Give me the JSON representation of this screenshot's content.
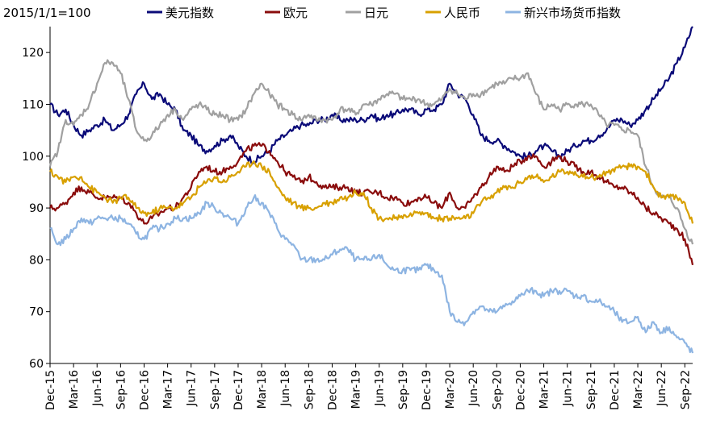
{
  "chart_data": {
    "type": "line",
    "note": "2015/1/1=100",
    "title": "",
    "xlabel": "",
    "ylabel": "",
    "ylim": [
      60,
      125
    ],
    "yticks": [
      60,
      70,
      80,
      90,
      100,
      110,
      120
    ],
    "xlim": [
      "2015-12",
      "2022-10"
    ],
    "xtick_labels": [
      "Dec-15",
      "Mar-16",
      "Jun-16",
      "Sep-16",
      "Dec-16",
      "Mar-17",
      "Jun-17",
      "Sep-17",
      "Dec-17",
      "Mar-18",
      "Jun-18",
      "Sep-18",
      "Dec-18",
      "Mar-19",
      "Jun-19",
      "Sep-19",
      "Dec-19",
      "Mar-20",
      "Jun-20",
      "Sep-20",
      "Dec-20",
      "Mar-21",
      "Jun-21",
      "Sep-21",
      "Dec-21",
      "Mar-22",
      "Jun-22",
      "Sep-22"
    ],
    "grid": false,
    "legend_position": "top",
    "x": [
      "2015-12",
      "2016-01",
      "2016-02",
      "2016-03",
      "2016-04",
      "2016-05",
      "2016-06",
      "2016-07",
      "2016-08",
      "2016-09",
      "2016-10",
      "2016-11",
      "2016-12",
      "2017-01",
      "2017-02",
      "2017-03",
      "2017-04",
      "2017-05",
      "2017-06",
      "2017-07",
      "2017-08",
      "2017-09",
      "2017-10",
      "2017-11",
      "2017-12",
      "2018-01",
      "2018-02",
      "2018-03",
      "2018-04",
      "2018-05",
      "2018-06",
      "2018-07",
      "2018-08",
      "2018-09",
      "2018-10",
      "2018-11",
      "2018-12",
      "2019-01",
      "2019-02",
      "2019-03",
      "2019-04",
      "2019-05",
      "2019-06",
      "2019-07",
      "2019-08",
      "2019-09",
      "2019-10",
      "2019-11",
      "2019-12",
      "2020-01",
      "2020-02",
      "2020-03",
      "2020-04",
      "2020-05",
      "2020-06",
      "2020-07",
      "2020-08",
      "2020-09",
      "2020-10",
      "2020-11",
      "2020-12",
      "2021-01",
      "2021-02",
      "2021-03",
      "2021-04",
      "2021-05",
      "2021-06",
      "2021-07",
      "2021-08",
      "2021-09",
      "2021-10",
      "2021-11",
      "2021-12",
      "2022-01",
      "2022-02",
      "2022-03",
      "2022-04",
      "2022-05",
      "2022-06",
      "2022-07",
      "2022-08",
      "2022-09",
      "2022-10"
    ],
    "series": [
      {
        "name": "美元指数",
        "color": "#0a0a78",
        "values": [
          110,
          108,
          109,
          106,
          104,
          105,
          106,
          107,
          105,
          106,
          108,
          112,
          114,
          111,
          112,
          110,
          109,
          105,
          104,
          102,
          101,
          102,
          103,
          104,
          102,
          100,
          99,
          100,
          101,
          103,
          104,
          105,
          106,
          106,
          107,
          107,
          108,
          107,
          107,
          107,
          107,
          108,
          107,
          108,
          108,
          109,
          109,
          108,
          109,
          109,
          110,
          114,
          112,
          111,
          108,
          104,
          103,
          103,
          102,
          101,
          100,
          100,
          101,
          102,
          101,
          100,
          101,
          102,
          103,
          103,
          104,
          105,
          107,
          107,
          106,
          107,
          109,
          111,
          113,
          115,
          118,
          121,
          125
        ]
      },
      {
        "name": "欧元",
        "color": "#8a0c0c",
        "values": [
          90,
          90,
          91,
          93,
          94,
          93,
          92,
          92,
          92,
          92,
          91,
          89,
          87,
          88,
          89,
          90,
          90,
          92,
          94,
          97,
          98,
          97,
          97,
          98,
          99,
          101,
          102,
          102,
          101,
          99,
          97,
          96,
          95,
          96,
          95,
          94,
          94,
          94,
          94,
          93,
          93,
          93,
          93,
          92,
          92,
          91,
          91,
          92,
          92,
          91,
          90,
          93,
          90,
          90,
          92,
          94,
          96,
          98,
          97,
          98,
          99,
          100,
          100,
          98,
          99,
          100,
          99,
          98,
          97,
          97,
          96,
          95,
          94,
          94,
          93,
          92,
          90,
          89,
          88,
          87,
          86,
          84,
          79
        ]
      },
      {
        "name": "日元",
        "color": "#a0a0a0",
        "values": [
          98,
          101,
          107,
          106,
          108,
          110,
          114,
          118,
          118,
          116,
          111,
          105,
          103,
          104,
          106,
          108,
          109,
          107,
          109,
          110,
          109,
          108,
          108,
          107,
          107,
          109,
          112,
          114,
          112,
          110,
          109,
          108,
          107,
          108,
          107,
          107,
          107,
          109,
          109,
          108,
          110,
          110,
          111,
          112,
          112,
          111,
          111,
          111,
          110,
          110,
          111,
          113,
          112,
          111,
          112,
          112,
          113,
          114,
          114,
          115,
          115,
          116,
          112,
          109,
          110,
          109,
          110,
          110,
          110,
          110,
          108,
          106,
          106,
          105,
          105,
          104,
          98,
          94,
          92,
          92,
          90,
          86,
          83
        ]
      },
      {
        "name": "人民币",
        "color": "#d8a000",
        "values": [
          97,
          96,
          95,
          96,
          96,
          94,
          93,
          92,
          91,
          92,
          92,
          90,
          89,
          89,
          90,
          90,
          90,
          91,
          92,
          94,
          95,
          96,
          95,
          96,
          97,
          98,
          99,
          98,
          97,
          94,
          92,
          91,
          90,
          90,
          90,
          91,
          91,
          92,
          92,
          93,
          93,
          90,
          88,
          88,
          88,
          88,
          89,
          89,
          89,
          88,
          88,
          88,
          88,
          88,
          89,
          91,
          92,
          93,
          94,
          94,
          95,
          96,
          96,
          95,
          96,
          97,
          97,
          97,
          96,
          96,
          96,
          97,
          97,
          98,
          98,
          98,
          97,
          94,
          92,
          92,
          92,
          91,
          87
        ]
      },
      {
        "name": "新兴市场货币指数",
        "color": "#8db4e2",
        "values": [
          86,
          83,
          84,
          86,
          88,
          87,
          88,
          88,
          88,
          88,
          87,
          85,
          84,
          86,
          86,
          87,
          88,
          88,
          88,
          89,
          91,
          90,
          89,
          88,
          87,
          90,
          92,
          91,
          89,
          86,
          84,
          83,
          80,
          80,
          80,
          80,
          81,
          82,
          82,
          80,
          80,
          80,
          81,
          79,
          78,
          78,
          78,
          78,
          79,
          78,
          77,
          70,
          68,
          68,
          70,
          71,
          70,
          70,
          71,
          72,
          73,
          74,
          74,
          73,
          74,
          74,
          74,
          73,
          73,
          72,
          72,
          71,
          70,
          68,
          68,
          69,
          66,
          68,
          66,
          67,
          65,
          64,
          62
        ]
      }
    ]
  }
}
